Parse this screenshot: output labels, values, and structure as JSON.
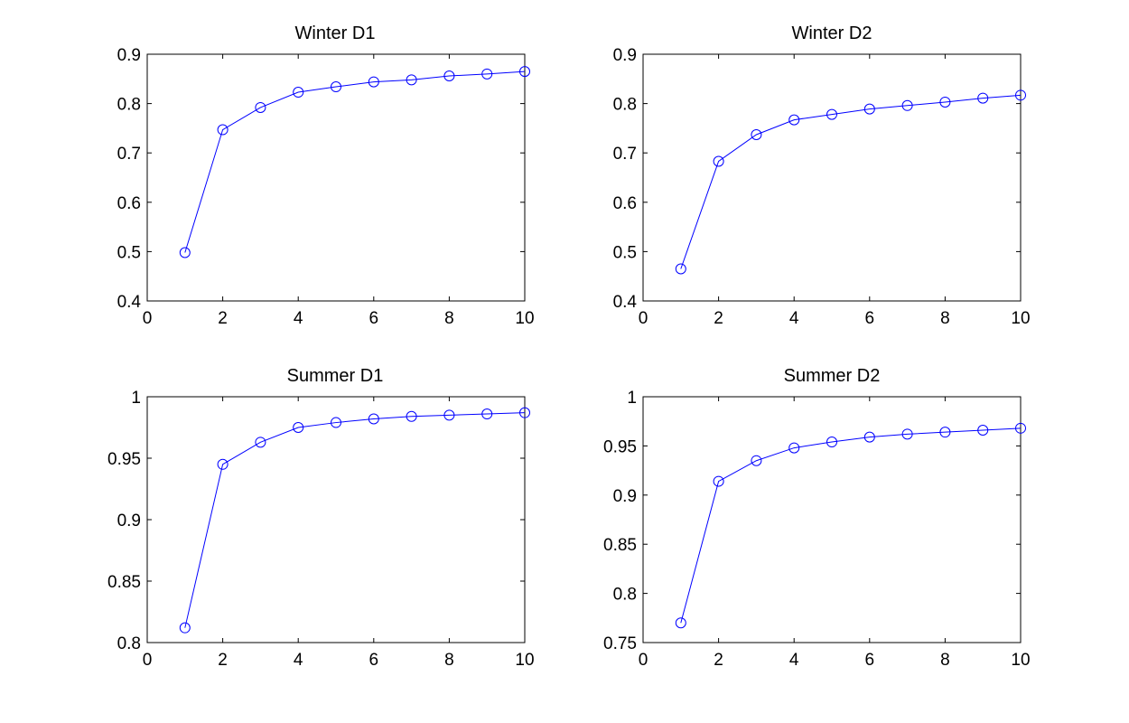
{
  "colors": {
    "series": "#0000ff",
    "axes": "#000000",
    "background": "#ffffff"
  },
  "chart_data": [
    {
      "type": "line",
      "title": "Winter D1",
      "xlabel": "",
      "ylabel": "",
      "xlim": [
        0,
        10
      ],
      "ylim": [
        0.4,
        0.9
      ],
      "xticks": [
        0,
        2,
        4,
        6,
        8,
        10
      ],
      "xtick_labels": [
        "0",
        "2",
        "4",
        "6",
        "8",
        "10"
      ],
      "yticks": [
        0.4,
        0.5,
        0.6,
        0.7,
        0.8,
        0.9
      ],
      "ytick_labels": [
        "0.4",
        "0.5",
        "0.6",
        "0.7",
        "0.8",
        "0.9"
      ],
      "grid": false,
      "marker": "circle",
      "series": [
        {
          "x": [
            1,
            2,
            3,
            4,
            5,
            6,
            7,
            8,
            9,
            10
          ],
          "values": [
            0.498,
            0.747,
            0.792,
            0.823,
            0.834,
            0.844,
            0.848,
            0.856,
            0.86,
            0.865
          ]
        }
      ]
    },
    {
      "type": "line",
      "title": "Winter D2",
      "xlabel": "",
      "ylabel": "",
      "xlim": [
        0,
        10
      ],
      "ylim": [
        0.4,
        0.9
      ],
      "xticks": [
        0,
        2,
        4,
        6,
        8,
        10
      ],
      "xtick_labels": [
        "0",
        "2",
        "4",
        "6",
        "8",
        "10"
      ],
      "yticks": [
        0.4,
        0.5,
        0.6,
        0.7,
        0.8,
        0.9
      ],
      "ytick_labels": [
        "0.4",
        "0.5",
        "0.6",
        "0.7",
        "0.8",
        "0.9"
      ],
      "grid": false,
      "marker": "circle",
      "series": [
        {
          "x": [
            1,
            2,
            3,
            4,
            5,
            6,
            7,
            8,
            9,
            10
          ],
          "values": [
            0.465,
            0.683,
            0.737,
            0.767,
            0.778,
            0.789,
            0.796,
            0.803,
            0.811,
            0.817
          ]
        }
      ]
    },
    {
      "type": "line",
      "title": "Summer D1",
      "xlabel": "",
      "ylabel": "",
      "xlim": [
        0,
        10
      ],
      "ylim": [
        0.8,
        1.0
      ],
      "xticks": [
        0,
        2,
        4,
        6,
        8,
        10
      ],
      "xtick_labels": [
        "0",
        "2",
        "4",
        "6",
        "8",
        "10"
      ],
      "yticks": [
        0.8,
        0.85,
        0.9,
        0.95,
        1.0
      ],
      "ytick_labels": [
        "0.8",
        "0.85",
        "0.9",
        "0.95",
        "1"
      ],
      "grid": false,
      "marker": "circle",
      "series": [
        {
          "x": [
            1,
            2,
            3,
            4,
            5,
            6,
            7,
            8,
            9,
            10
          ],
          "values": [
            0.812,
            0.945,
            0.963,
            0.975,
            0.979,
            0.982,
            0.984,
            0.985,
            0.986,
            0.987
          ]
        }
      ]
    },
    {
      "type": "line",
      "title": "Summer D2",
      "xlabel": "",
      "ylabel": "",
      "xlim": [
        0,
        10
      ],
      "ylim": [
        0.75,
        1.0
      ],
      "xticks": [
        0,
        2,
        4,
        6,
        8,
        10
      ],
      "xtick_labels": [
        "0",
        "2",
        "4",
        "6",
        "8",
        "10"
      ],
      "yticks": [
        0.75,
        0.8,
        0.85,
        0.9,
        0.95,
        1.0
      ],
      "ytick_labels": [
        "0.75",
        "0.8",
        "0.85",
        "0.9",
        "0.95",
        "1"
      ],
      "grid": false,
      "marker": "circle",
      "series": [
        {
          "x": [
            1,
            2,
            3,
            4,
            5,
            6,
            7,
            8,
            9,
            10
          ],
          "values": [
            0.77,
            0.914,
            0.935,
            0.948,
            0.954,
            0.959,
            0.962,
            0.964,
            0.966,
            0.968
          ]
        }
      ]
    }
  ]
}
